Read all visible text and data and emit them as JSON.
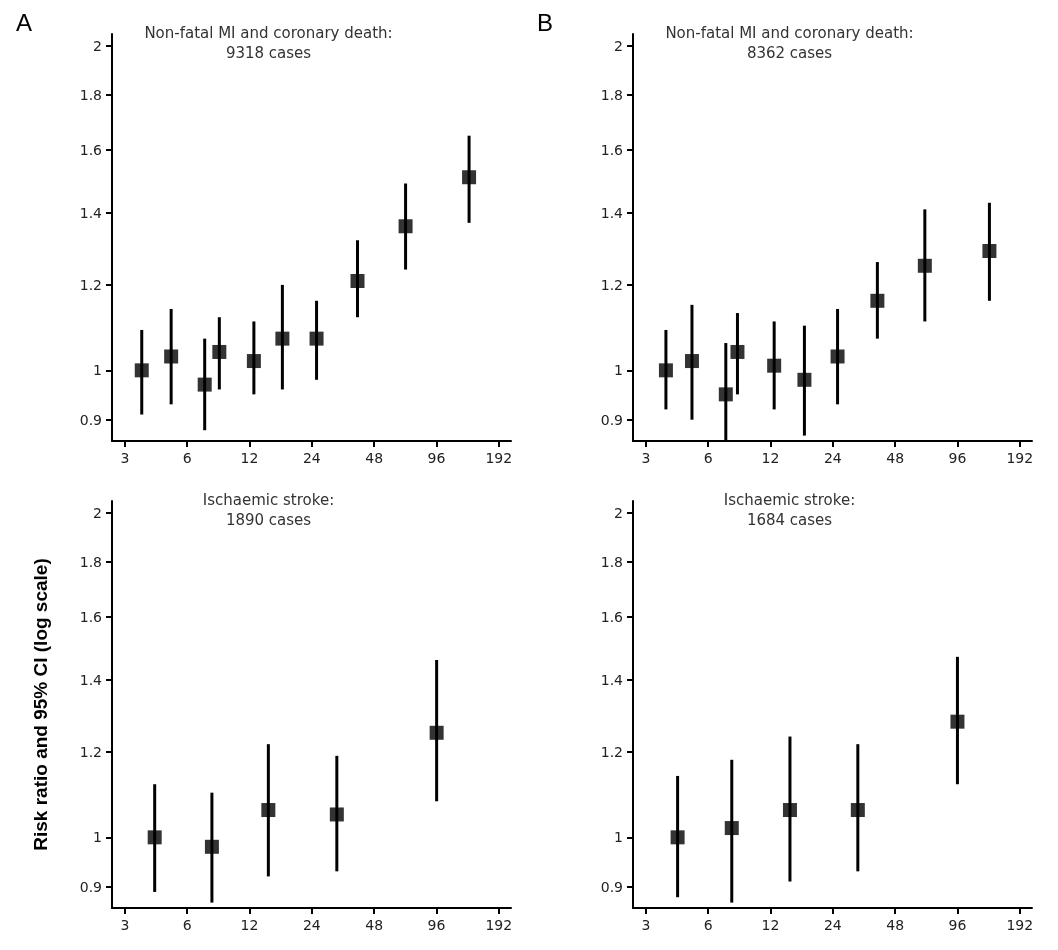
{
  "chart_data": [
    {
      "type": "scatter",
      "title": "Non-fatal MI and coronary death:\n9318 cases",
      "annotations": [
        "A"
      ],
      "log": "xy",
      "marker": "square",
      "color": "#000000",
      "x": [
        3.62,
        5.02,
        7.29,
        8.58,
        12.6,
        17.3,
        25.3,
        39.9,
        68.1,
        138
      ],
      "values": [
        1.0,
        1.03,
        0.97,
        1.04,
        1.02,
        1.07,
        1.07,
        1.21,
        1.36,
        1.51
      ],
      "errors": [
        [
          0.91,
          1.09
        ],
        [
          0.93,
          1.14
        ],
        [
          0.88,
          1.07
        ],
        [
          0.96,
          1.12
        ],
        [
          0.95,
          1.11
        ],
        [
          0.96,
          1.2
        ],
        [
          0.98,
          1.16
        ],
        [
          1.12,
          1.32
        ],
        [
          1.24,
          1.49
        ],
        [
          1.37,
          1.65
        ]
      ],
      "xlim": [
        2.6,
        220
      ],
      "ylim": [
        0.86,
        2.05
      ],
      "xticks": [
        3,
        6,
        12,
        24,
        48,
        96,
        192
      ],
      "yticks": [
        0.9,
        1,
        1.2,
        1.4,
        1.6,
        1.8,
        2
      ]
    },
    {
      "type": "scatter",
      "title": "Non-fatal MI and coronary death:\n8362 cases",
      "annotations": [
        "B"
      ],
      "log": "xy",
      "marker": "square",
      "color": "#000000",
      "x": [
        3.75,
        5.01,
        7.3,
        8.31,
        12.5,
        17.5,
        25.3,
        39.4,
        66.8,
        137
      ],
      "values": [
        1.0,
        1.02,
        0.95,
        1.04,
        1.01,
        0.98,
        1.03,
        1.16,
        1.25,
        1.29
      ],
      "errors": [
        [
          0.92,
          1.09
        ],
        [
          0.9,
          1.15
        ],
        [
          0.86,
          1.06
        ],
        [
          0.95,
          1.13
        ],
        [
          0.92,
          1.11
        ],
        [
          0.87,
          1.1
        ],
        [
          0.93,
          1.14
        ],
        [
          1.07,
          1.26
        ],
        [
          1.11,
          1.41
        ],
        [
          1.16,
          1.43
        ]
      ],
      "xlim": [
        2.6,
        220
      ],
      "ylim": [
        0.86,
        2.05
      ],
      "xticks": [
        3,
        6,
        12,
        24,
        48,
        96,
        192
      ],
      "yticks": [
        0.9,
        1,
        1.2,
        1.4,
        1.6,
        1.8,
        2
      ]
    },
    {
      "type": "scatter",
      "title": "Ischaemic stroke:\n1890 cases",
      "ylabel": "Risk ratio and 95% CI (log scale)",
      "log": "xy",
      "marker": "square",
      "color": "#000000",
      "x": [
        4.18,
        7.9,
        14.8,
        31.7,
        96.2
      ],
      "values": [
        1.0,
        0.98,
        1.06,
        1.05,
        1.25
      ],
      "errors": [
        [
          0.89,
          1.12
        ],
        [
          0.87,
          1.1
        ],
        [
          0.92,
          1.22
        ],
        [
          0.93,
          1.19
        ],
        [
          1.08,
          1.46
        ]
      ],
      "xlim": [
        2.6,
        220
      ],
      "ylim": [
        0.86,
        2.05
      ],
      "xticks": [
        3,
        6,
        12,
        24,
        48,
        96,
        192
      ],
      "yticks": [
        0.9,
        1,
        1.2,
        1.4,
        1.6,
        1.8,
        2
      ]
    },
    {
      "type": "scatter",
      "title": "Ischaemic stroke:\n1684 cases",
      "log": "xy",
      "marker": "square",
      "color": "#000000",
      "x": [
        4.27,
        7.8,
        14.9,
        31.7,
        96
      ],
      "values": [
        1.0,
        1.02,
        1.06,
        1.06,
        1.28
      ],
      "errors": [
        [
          0.88,
          1.14
        ],
        [
          0.87,
          1.18
        ],
        [
          0.91,
          1.24
        ],
        [
          0.93,
          1.22
        ],
        [
          1.12,
          1.47
        ]
      ],
      "xlim": [
        2.6,
        220
      ],
      "ylim": [
        0.86,
        2.05
      ],
      "xticks": [
        3,
        6,
        12,
        24,
        48,
        96,
        192
      ],
      "yticks": [
        0.9,
        1,
        1.2,
        1.4,
        1.6,
        1.8,
        2
      ]
    }
  ]
}
